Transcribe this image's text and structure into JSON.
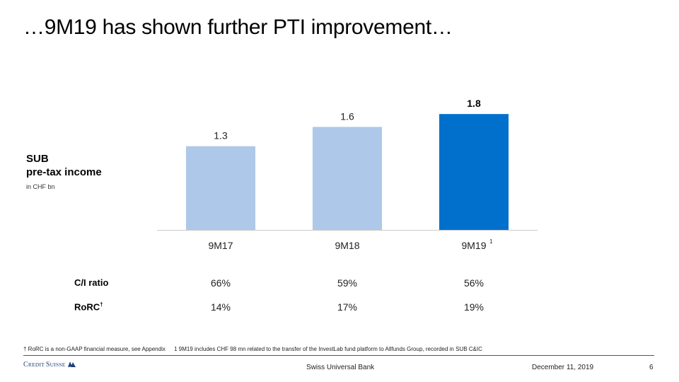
{
  "title": "…9M19 has shown further PTI improvement…",
  "chart_data": {
    "type": "bar",
    "title": "SUB pre-tax income",
    "title_lines": [
      "SUB",
      "pre-tax income"
    ],
    "ylabel": "in CHF bn",
    "categories": [
      "9M17",
      "9M18",
      "9M19"
    ],
    "category_footnotes": [
      "",
      "",
      "1"
    ],
    "values": [
      1.3,
      1.6,
      1.8
    ],
    "value_labels": [
      "1.3",
      "1.6",
      "1.8"
    ],
    "highlight_index": 2,
    "colors": [
      "#adc8e8",
      "#adc8e8",
      "#0070cc"
    ],
    "ylim": [
      0,
      1.8
    ],
    "grid": false
  },
  "metrics": [
    {
      "label": "C/I ratio",
      "marker": "",
      "values": [
        "66%",
        "59%",
        "56%"
      ]
    },
    {
      "label": "RoRC",
      "marker": "†",
      "values": [
        "14%",
        "17%",
        "19%"
      ]
    }
  ],
  "footnotes": [
    "† RoRC is a non-GAAP financial measure, see Appendix",
    "1 9M19 includes CHF 98 mn related to the transfer of the InvestLab fund platform to Allfunds Group, recorded in SUB C&IC"
  ],
  "footer": {
    "logo_text": "Credit Suisse",
    "logo_parts": [
      "C",
      "REDIT ",
      "S",
      "UISSE"
    ],
    "center": "Swiss Universal Bank",
    "date": "December 11, 2019",
    "page": "6"
  },
  "colors": {
    "logo": "#1c3f74",
    "axis": "#cccccc"
  }
}
